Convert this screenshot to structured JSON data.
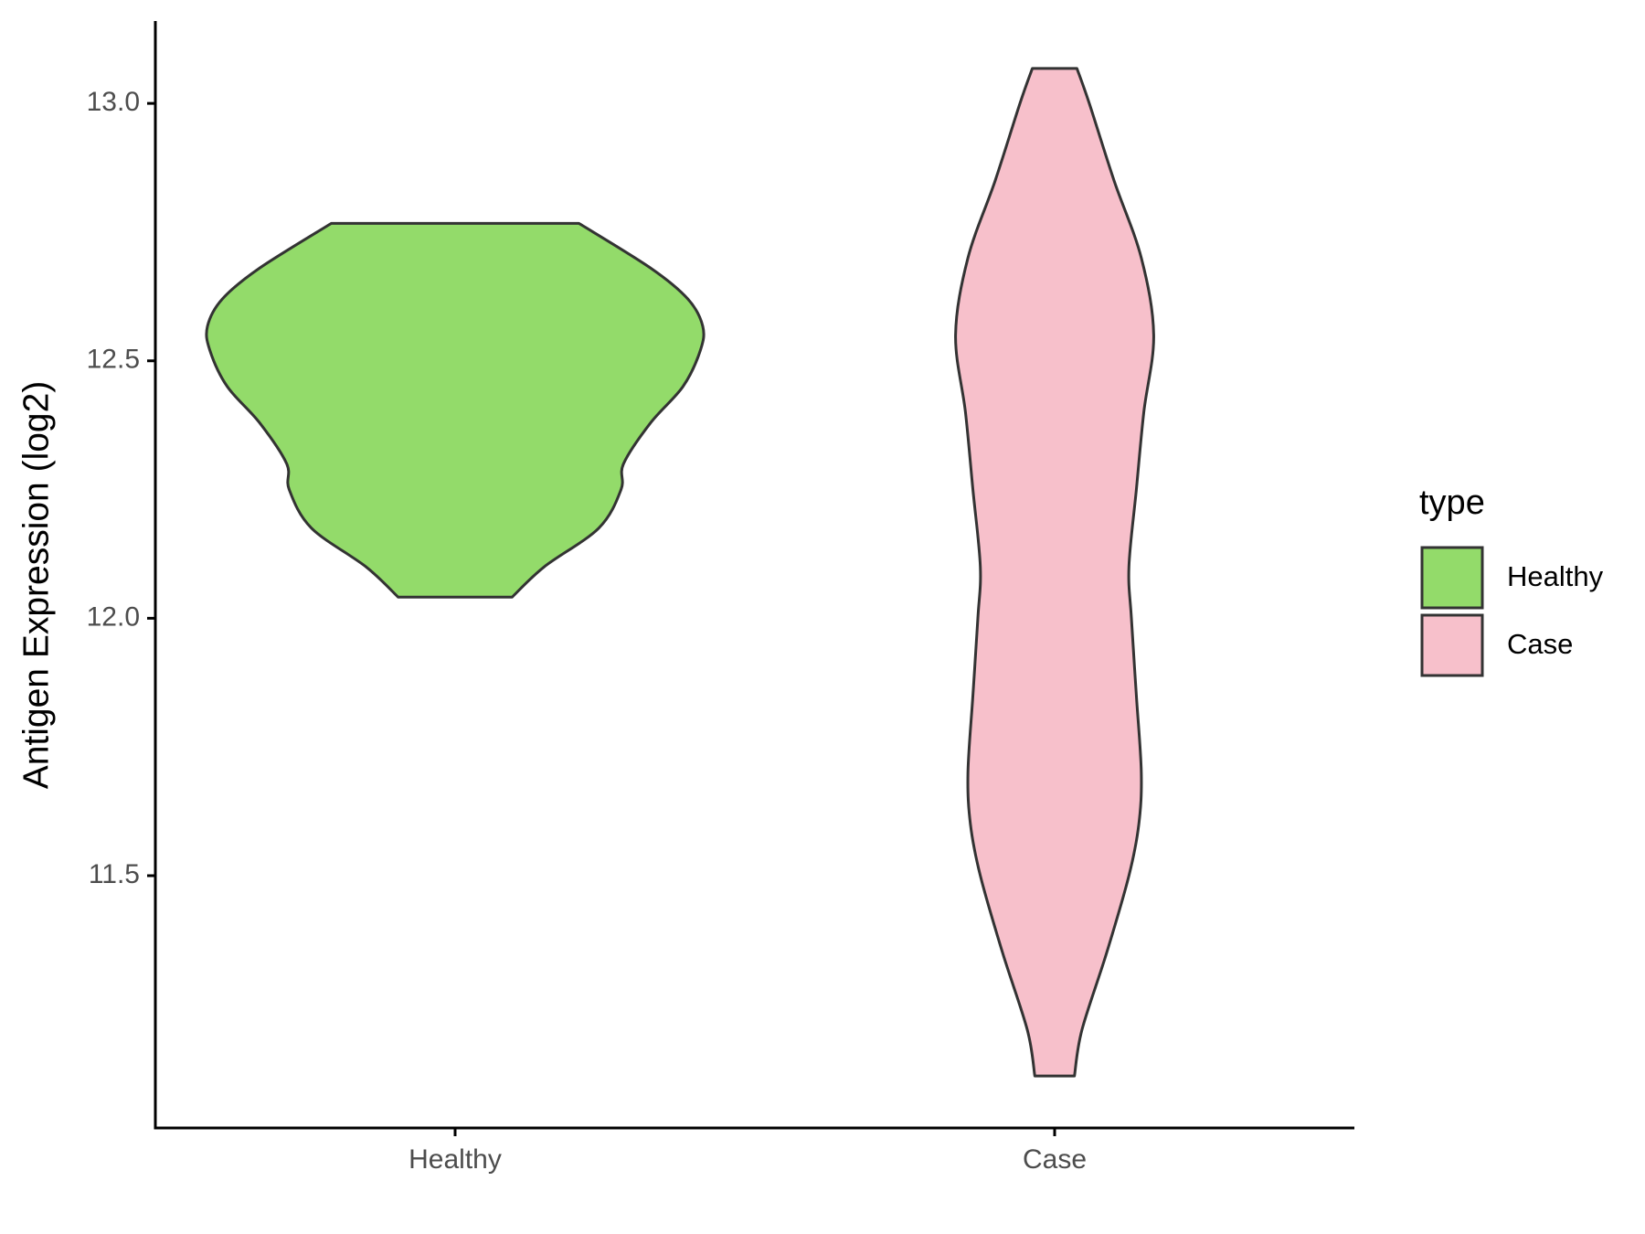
{
  "chart_data": {
    "type": "violin",
    "y_label": "Antigen Expression (log2)",
    "categories": [
      "Healthy",
      "Case"
    ],
    "legend_title": "type",
    "legend_position": "right",
    "ylim": [
      11.01,
      13.16
    ],
    "yticks": [
      {
        "value": 11.5,
        "label": "11.5"
      },
      {
        "value": 12,
        "label": "12.0"
      },
      {
        "value": 12.5,
        "label": "12.5"
      },
      {
        "value": 13,
        "label": "13.0"
      }
    ],
    "series": [
      {
        "name": "Healthy",
        "color": "#93db6a",
        "y": [
          12.041,
          12.1,
          12.175,
          12.25,
          12.3,
          12.38,
          12.45,
          12.52,
          12.567,
          12.62,
          12.68,
          12.767
        ],
        "density": [
          0.23,
          0.36,
          0.58,
          0.67,
          0.68,
          0.79,
          0.92,
          0.99,
          1.0,
          0.94,
          0.79,
          0.5
        ]
      },
      {
        "name": "Case",
        "color": "#f7c0cb",
        "y": [
          11.111,
          11.2,
          11.35,
          11.5,
          11.6,
          11.7,
          11.85,
          12.0,
          12.1,
          12.25,
          12.4,
          12.55,
          12.7,
          12.85,
          13.0,
          13.068
        ],
        "density": [
          0.08,
          0.11,
          0.21,
          0.3,
          0.34,
          0.35,
          0.33,
          0.31,
          0.3,
          0.33,
          0.36,
          0.4,
          0.35,
          0.24,
          0.14,
          0.09
        ]
      }
    ]
  }
}
